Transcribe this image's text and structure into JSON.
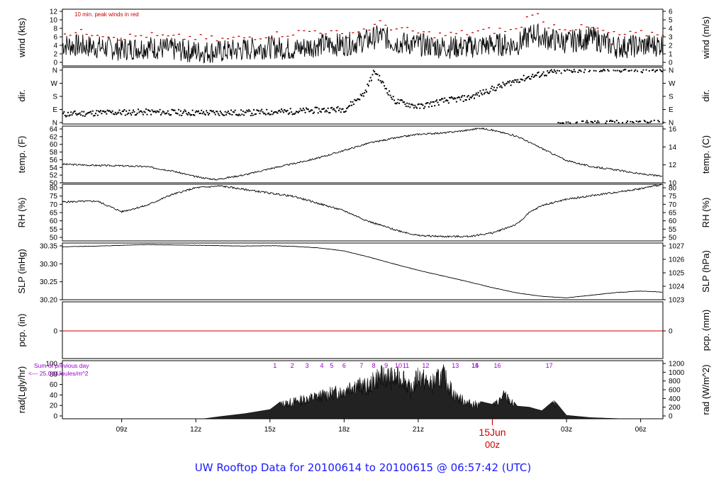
{
  "footer": {
    "title": "UW Rooftop Data for 20100614  to  20100615 @ 06:57:42  (UTC)"
  },
  "wind_note": "10 min. peak winds in red",
  "rad_note": {
    "line1": "Sum of previous day",
    "line2": "<--- 25.0  MJoules/m^2"
  },
  "date_marker": {
    "date": "15Jun",
    "hour": "00z"
  },
  "colors": {
    "accent": "#cc0000",
    "note": "#cc0000",
    "purple": "#9900cc",
    "footer": "#1a1aff",
    "ink": "#000000"
  },
  "chart_data": [
    {
      "id": "wind",
      "type": "line",
      "ylabel": "wind (kts)",
      "ylabel_right": "wind (m/s)",
      "ylim": [
        0,
        12
      ],
      "yticks": [
        "0",
        "2",
        "4",
        "6",
        "8",
        "10",
        "12"
      ],
      "yticks_right": [
        "0",
        "1",
        "2",
        "3",
        "4",
        "5",
        "6"
      ],
      "x": [
        6.6,
        8,
        9,
        10,
        11,
        12,
        13,
        14,
        15,
        16,
        17,
        18,
        19,
        19.5,
        20,
        21,
        22,
        23,
        24,
        25,
        25.7,
        26,
        27,
        28,
        29,
        30.9
      ],
      "series": [
        {
          "values": [
            4.5,
            4,
            3.5,
            4,
            3.5,
            3,
            3,
            3.5,
            4,
            3.5,
            4.5,
            4.5,
            5.5,
            6.5,
            5,
            4.5,
            4,
            4,
            4.5,
            4.5,
            7,
            6,
            5,
            6,
            4,
            4.5
          ]
        },
        {
          "values": [
            7,
            7,
            6,
            6.5,
            6,
            6,
            5.5,
            6,
            6.5,
            7,
            7.5,
            6.5,
            8,
            9,
            8,
            7,
            6.5,
            7,
            7.5,
            7.5,
            12,
            9,
            8,
            8,
            6.5,
            7
          ]
        }
      ]
    },
    {
      "id": "dir",
      "type": "scatter",
      "ylabel": "dir.",
      "ylabel_right": "dir.",
      "ylim": [
        0,
        360
      ],
      "yticks": [
        "N",
        "E",
        "S",
        "W",
        "N"
      ],
      "yticks_right": [
        "N",
        "E",
        "S",
        "W",
        "N"
      ],
      "x": [
        6.6,
        8,
        10,
        12,
        14,
        16,
        18,
        18.8,
        19.2,
        20,
        21,
        22,
        23,
        24,
        25,
        26,
        27,
        28,
        30.9
      ],
      "values": [
        60,
        70,
        75,
        70,
        70,
        80,
        95,
        200,
        350,
        150,
        110,
        150,
        170,
        230,
        290,
        330,
        355,
        360,
        360
      ]
    },
    {
      "id": "temp",
      "type": "line",
      "ylabel": "temp. (F)",
      "ylabel_right": "temp. (C)",
      "ylim": [
        50,
        64
      ],
      "yticks": [
        "50",
        "52",
        "54",
        "56",
        "58",
        "60",
        "62",
        "64"
      ],
      "yticks_right": [
        "10",
        "12",
        "14",
        "16"
      ],
      "x": [
        6.6,
        8,
        9,
        10,
        11,
        12,
        12.8,
        13,
        14,
        15,
        16,
        17,
        18,
        19,
        20,
        21,
        22,
        23,
        23.5,
        24,
        25,
        26,
        27,
        28,
        29,
        30,
        30.9
      ],
      "values": [
        54.6,
        54.3,
        54.2,
        54,
        53,
        51.5,
        50.8,
        51,
        52,
        53.5,
        54.8,
        56.2,
        58,
        59.8,
        61,
        62,
        62.3,
        63,
        63.5,
        63,
        61.5,
        58.5,
        55.5,
        54,
        53.2,
        52.2,
        51.6
      ]
    },
    {
      "id": "rh",
      "type": "line",
      "ylabel": "RH (%)",
      "ylabel_right": "RH (%)",
      "ylim": [
        48,
        80
      ],
      "yticks": [
        "50",
        "55",
        "60",
        "65",
        "70",
        "75",
        "80"
      ],
      "yticks_right": [
        "50",
        "55",
        "60",
        "65",
        "70",
        "75",
        "80"
      ],
      "x": [
        6.6,
        8,
        9,
        10,
        11,
        12,
        13,
        14,
        15,
        16,
        17,
        18,
        19,
        20,
        21,
        22,
        23,
        24,
        25,
        25.5,
        26,
        27,
        28,
        29,
        30,
        30.9
      ],
      "values": [
        70,
        70.5,
        64.5,
        68,
        74,
        78,
        79,
        77,
        75,
        73,
        69,
        65,
        59,
        54.5,
        51,
        50.5,
        50.5,
        52.5,
        57.5,
        64,
        68,
        71.5,
        73.5,
        75.5,
        77.5,
        80
      ]
    },
    {
      "id": "slp",
      "type": "line",
      "ylabel": "SLP (inHg)",
      "ylabel_right": "SLP (hPa)",
      "ylim": [
        30.2,
        30.35
      ],
      "yticks": [
        "30.20",
        "30.25",
        "30.30",
        "30.35"
      ],
      "yticks_right": [
        "1023",
        "1024",
        "1025",
        "1026",
        "1027"
      ],
      "x": [
        6.6,
        8,
        9,
        10,
        11,
        12,
        13,
        14,
        15,
        16,
        17,
        18,
        19,
        20,
        21,
        22,
        23,
        24,
        25,
        26,
        27,
        28,
        29,
        30,
        30.9
      ],
      "values": [
        30.34,
        30.342,
        30.344,
        30.346,
        30.345,
        30.344,
        30.343,
        30.342,
        30.343,
        30.341,
        30.337,
        30.329,
        30.313,
        30.295,
        30.278,
        30.263,
        30.248,
        30.232,
        30.218,
        30.209,
        30.205,
        30.212,
        30.219,
        30.223,
        30.22
      ]
    },
    {
      "id": "pcp",
      "type": "line",
      "ylabel": "pcp. (in)",
      "ylabel_right": "pcp. (mm)",
      "yticks": [
        "0"
      ],
      "yticks_right": [
        "0"
      ],
      "x": [
        6.6,
        30.9
      ],
      "values": [
        0,
        0
      ]
    },
    {
      "id": "rad",
      "type": "area",
      "ylabel": "rad(Lgly/hr)",
      "ylabel_right": "rad (W/m^2)",
      "ylim": [
        0,
        100
      ],
      "yticks": [
        "0",
        "20",
        "40",
        "60",
        "80",
        "100"
      ],
      "yticks_right": [
        "0",
        "200",
        "400",
        "600",
        "800",
        "1000",
        "1200"
      ],
      "x": [
        12.3,
        13,
        14,
        15,
        15.5,
        16,
        17,
        18,
        18.3,
        19,
        19.3,
        19.7,
        20,
        20.4,
        20.7,
        21,
        21.5,
        22,
        22.5,
        23,
        24,
        24.5,
        25,
        25.5,
        26,
        26.5,
        27,
        28,
        29.3
      ],
      "values": [
        0,
        4,
        9,
        16,
        32,
        38,
        50,
        62,
        75,
        70,
        90,
        95,
        88,
        93,
        60,
        96,
        75,
        96,
        50,
        35,
        25,
        52,
        22,
        20,
        14,
        32,
        6,
        2,
        0
      ],
      "annotations": [
        "1",
        "2",
        "3",
        "4",
        "5",
        "6",
        "7",
        "8",
        "9",
        "10",
        "11",
        "12",
        "13",
        "14",
        "15",
        "16",
        "17"
      ]
    }
  ],
  "time_axis": {
    "min": 6.6,
    "max": 30.9,
    "ticks": [
      {
        "x": 9,
        "label": "09z"
      },
      {
        "x": 12,
        "label": "12z"
      },
      {
        "x": 15,
        "label": "15z"
      },
      {
        "x": 18,
        "label": "18z"
      },
      {
        "x": 21,
        "label": "21z"
      },
      {
        "x": 27,
        "label": "03z"
      },
      {
        "x": 30,
        "label": "06z"
      }
    ]
  }
}
